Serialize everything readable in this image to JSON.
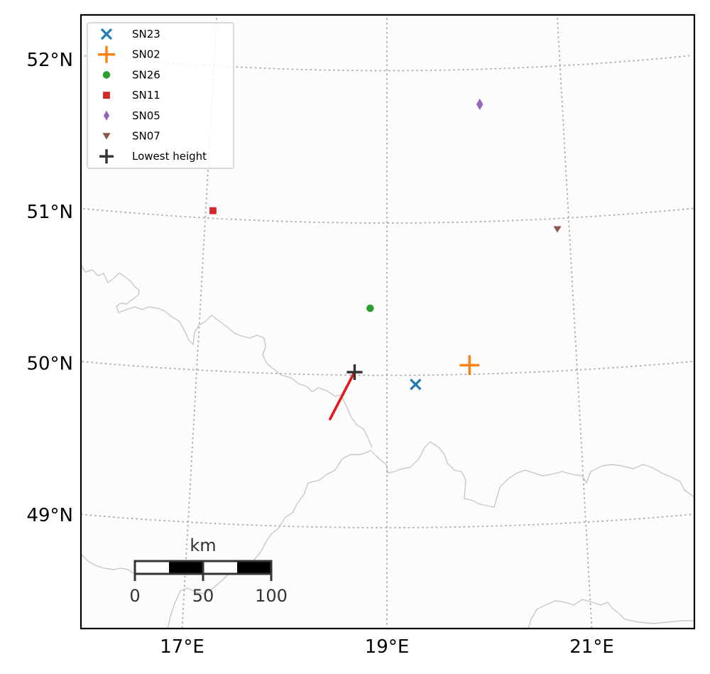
{
  "colors": {
    "SN23": "#1f77b4",
    "SN02": "#ff7f0e",
    "SN26": "#2ca02c",
    "SN11": "#d62728",
    "SN05": "#9467bd",
    "SN07": "#8c564b",
    "lowest_height": "#333333",
    "track": "#e8161b",
    "gridline": "#aaaaaa",
    "border": "#c8c8c8",
    "background": "#fcfcfc"
  },
  "chart_data": {
    "type": "scatter",
    "xlabel": "",
    "ylabel": "",
    "x_ticks": [
      {
        "lon": 17,
        "label": "17°E"
      },
      {
        "lon": 19,
        "label": "19°E"
      },
      {
        "lon": 21,
        "label": "21°E"
      }
    ],
    "y_ticks": [
      {
        "lat": 49,
        "label": "49°N"
      },
      {
        "lat": 50,
        "label": "50°N"
      },
      {
        "lat": 51,
        "label": "51°N"
      },
      {
        "lat": 52,
        "label": "52°N"
      }
    ],
    "xlim": [
      16.0,
      22.0
    ],
    "ylim": [
      48.3,
      52.4
    ],
    "grid": true,
    "legend_position": "top-left",
    "series": [
      {
        "name": "SN23",
        "marker": "x",
        "lon": 19.3,
        "lat": 49.94
      },
      {
        "name": "SN02",
        "marker": "plus",
        "lon": 19.87,
        "lat": 50.06
      },
      {
        "name": "SN26",
        "marker": "circle",
        "lon": 18.82,
        "lat": 50.44
      },
      {
        "name": "SN11",
        "marker": "square",
        "lon": 17.08,
        "lat": 51.05
      },
      {
        "name": "SN05",
        "marker": "diamond",
        "lon": 20.06,
        "lat": 51.77
      },
      {
        "name": "SN07",
        "marker": "triangle-down",
        "lon": 20.87,
        "lat": 50.93
      },
      {
        "name": "Lowest height",
        "marker": "plus",
        "lon": 18.66,
        "lat": 50.02
      }
    ],
    "track": [
      {
        "lon": 18.41,
        "lat": 49.71
      },
      {
        "lon": 18.65,
        "lat": 50.01
      }
    ],
    "scale_bar": {
      "unit_label": "km",
      "tick_labels": [
        "0",
        "50",
        "100"
      ]
    }
  }
}
